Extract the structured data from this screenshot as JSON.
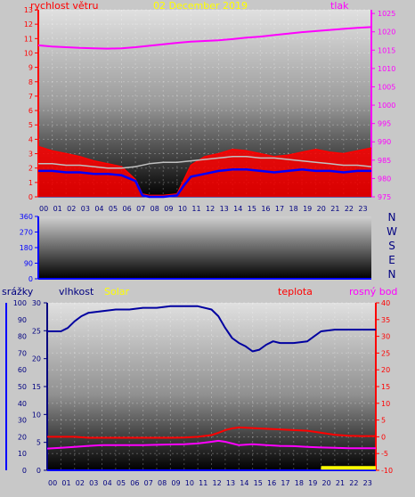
{
  "colors": {
    "frame": "#c8c8c8",
    "wind": "#ff0000",
    "gust_fill": "#ff0000",
    "avg_wind": "#0000ff",
    "pressure": "#ff00ff",
    "temp_humidity_line": "#c0c0c0",
    "humidity": "#0000a0",
    "solar": "#ffff00",
    "temperature": "#ff0000",
    "dewpoint": "#ff00ff",
    "rain": "#0000ff",
    "direction_axis": "#0000ff",
    "dark_text": "#000080",
    "date": "#ffff00"
  },
  "top": {
    "date": "02 December 2019",
    "label_left": "rychlost větru",
    "label_right": "tlak",
    "left_ticks": [
      "0",
      "1",
      "2",
      "3",
      "4",
      "5",
      "6",
      "7",
      "8",
      "9",
      "10",
      "11",
      "12",
      "13"
    ],
    "right_ticks": [
      "975",
      "980",
      "985",
      "990",
      "995",
      "1000",
      "1005",
      "1010",
      "1015",
      "1020",
      "1025"
    ],
    "hours": [
      "00",
      "01",
      "02",
      "03",
      "04",
      "05",
      "06",
      "07",
      "08",
      "09",
      "10",
      "11",
      "12",
      "13",
      "14",
      "15",
      "16",
      "17",
      "18",
      "19",
      "20",
      "21",
      "22",
      "23"
    ]
  },
  "middle": {
    "left_ticks": [
      "0",
      "90",
      "180",
      "270",
      "360"
    ],
    "compass": [
      "N",
      "W",
      "S",
      "E",
      "N"
    ]
  },
  "bottom": {
    "label_rain": "srážky",
    "label_humidity": "vlhkost",
    "label_solar": "Solar",
    "label_temp": "teplota",
    "label_dew": "rosný bod",
    "rain_ticks": [
      "0",
      "5",
      "10",
      "15",
      "20",
      "25",
      "30"
    ],
    "humidity_ticks": [
      "0",
      "10",
      "20",
      "30",
      "40",
      "50",
      "60",
      "70",
      "80",
      "90",
      "100"
    ],
    "temp_ticks": [
      "-10",
      "-5",
      "0",
      "5",
      "10",
      "15",
      "20",
      "25",
      "30",
      "35",
      "40"
    ],
    "hours": [
      "00",
      "01",
      "02",
      "03",
      "04",
      "05",
      "06",
      "07",
      "08",
      "09",
      "10",
      "11",
      "12",
      "13",
      "14",
      "15",
      "16",
      "17",
      "18",
      "19",
      "20",
      "21",
      "22",
      "23"
    ]
  },
  "chart_data": [
    {
      "type": "line",
      "title": "02 December 2019",
      "ylabel": "rychlost větru",
      "y2label": "tlak",
      "x_unit": "hour",
      "xlim": [
        0,
        24
      ],
      "ylim": [
        0,
        13
      ],
      "y2lim": [
        975,
        1026
      ],
      "series": [
        {
          "name": "tlak",
          "axis": "right",
          "x": [
            0,
            1,
            2,
            3,
            4,
            5,
            6,
            7,
            8,
            9,
            10,
            11,
            12,
            13,
            14,
            15,
            16,
            17,
            18,
            19,
            20,
            21,
            22,
            23,
            24
          ],
          "values": [
            1016.3,
            1016,
            1015.8,
            1015.6,
            1015.5,
            1015.4,
            1015.5,
            1015.8,
            1016.2,
            1016.6,
            1017,
            1017.3,
            1017.5,
            1017.7,
            1018,
            1018.4,
            1018.7,
            1019.1,
            1019.5,
            1019.9,
            1020.2,
            1020.5,
            1020.8,
            1021.1,
            1021.3
          ]
        },
        {
          "x": [
            0,
            1,
            2,
            3,
            4,
            5,
            6,
            7,
            7.5,
            8,
            9,
            10,
            10.5,
            11,
            12,
            13,
            14,
            15,
            16,
            17,
            18,
            19,
            20,
            21,
            22,
            23,
            24
          ],
          "values": [
            3.5,
            3.2,
            3,
            2.8,
            2.5,
            2.3,
            2.1,
            1.2,
            0.2,
            0.1,
            0.1,
            0.2,
            1.2,
            2.2,
            2.8,
            3,
            3.3,
            3.2,
            3,
            2.8,
            2.9,
            3.1,
            3.3,
            3.1,
            3,
            3.2,
            3.4
          ]
        },
        {
          "x": [
            0,
            1,
            2,
            3,
            4,
            5,
            6,
            7,
            7.5,
            8,
            9,
            10,
            10.5,
            11,
            12,
            13,
            14,
            15,
            16,
            17,
            18,
            19,
            20,
            21,
            22,
            23,
            24
          ],
          "values": [
            1.8,
            1.8,
            1.7,
            1.7,
            1.6,
            1.6,
            1.5,
            1.1,
            0.1,
            0,
            0,
            0.1,
            0.8,
            1.4,
            1.6,
            1.8,
            1.9,
            1.9,
            1.8,
            1.7,
            1.8,
            1.9,
            1.8,
            1.8,
            1.7,
            1.8,
            1.8
          ]
        },
        {
          "x": [
            0,
            1,
            2,
            3,
            4,
            5,
            6,
            7,
            8,
            9,
            10,
            11,
            12,
            13,
            14,
            15,
            16,
            17,
            18,
            19,
            20,
            21,
            22,
            23,
            24
          ],
          "values": [
            2.3,
            2.3,
            2.2,
            2.2,
            2.1,
            2,
            2,
            2.1,
            2.3,
            2.4,
            2.4,
            2.5,
            2.6,
            2.7,
            2.8,
            2.8,
            2.7,
            2.7,
            2.6,
            2.5,
            2.4,
            2.3,
            2.2,
            2.2,
            2.1
          ]
        }
      ]
    },
    {
      "type": "scatter",
      "ylim": [
        0,
        360
      ],
      "x": [],
      "values": []
    },
    {
      "type": "line",
      "ylabel": "srážky",
      "y2label": "teplota",
      "x_unit": "hour",
      "xlim": [
        0,
        24
      ],
      "ylim": [
        0,
        30
      ],
      "y_humidity_lim": [
        0,
        100
      ],
      "y2lim": [
        -10,
        40
      ],
      "series": [
        {
          "name": "vlhkost",
          "axis": "humidity",
          "x": [
            0,
            1,
            1.5,
            2,
            2.5,
            3,
            4,
            5,
            6,
            7,
            8,
            9,
            10,
            11,
            12,
            12.5,
            13,
            13.5,
            14,
            14.5,
            15,
            15.5,
            16,
            16.5,
            17,
            18,
            19,
            19.5,
            20,
            21,
            22,
            23,
            24
          ],
          "values": [
            83,
            83,
            85,
            89,
            92,
            94,
            95,
            96,
            96,
            97,
            97,
            98,
            98,
            98,
            96,
            92,
            85,
            79,
            76,
            74,
            71,
            72,
            75,
            77,
            76,
            76,
            77,
            80,
            83,
            84,
            84,
            84,
            84
          ]
        },
        {
          "name": "teplota",
          "axis": "right",
          "x": [
            0,
            1,
            2,
            3,
            4,
            5,
            6,
            7,
            8,
            9,
            10,
            11,
            12,
            12.5,
            13,
            13.5,
            14,
            15,
            16,
            17,
            18,
            19,
            20,
            21,
            22,
            23,
            24
          ],
          "values": [
            0,
            0,
            0,
            -0.3,
            -0.3,
            -0.3,
            -0.3,
            -0.3,
            -0.3,
            -0.3,
            -0.2,
            0,
            0.5,
            1.2,
            2,
            2.5,
            2.8,
            2.6,
            2.4,
            2.2,
            2,
            1.8,
            1.2,
            0.6,
            0.3,
            0.2,
            0.2
          ]
        },
        {
          "name": "rosný bod",
          "axis": "right",
          "x": [
            0,
            1,
            2,
            3,
            4,
            5,
            6,
            7,
            8,
            9,
            10,
            11,
            12,
            12.5,
            13,
            13.5,
            14,
            15,
            16,
            17,
            18,
            19,
            20,
            21,
            22,
            23,
            24
          ],
          "values": [
            -3.5,
            -3.3,
            -3,
            -2.7,
            -2.5,
            -2.5,
            -2.5,
            -2.5,
            -2.4,
            -2.3,
            -2.2,
            -2,
            -1.5,
            -1.2,
            -1.5,
            -2,
            -2.5,
            -2.2,
            -2.5,
            -2.7,
            -2.8,
            -3,
            -3.2,
            -3.3,
            -3.4,
            -3.4,
            -3.4
          ]
        },
        {
          "name": "srážky",
          "axis": "left",
          "x": [
            0,
            24
          ],
          "values": [
            0,
            0
          ]
        },
        {
          "name": "Solar",
          "axis": "humidity",
          "x": [
            20,
            21,
            22,
            23,
            24
          ],
          "values": [
            1.5,
            1.5,
            1.5,
            1.5,
            1.5
          ]
        }
      ]
    }
  ]
}
